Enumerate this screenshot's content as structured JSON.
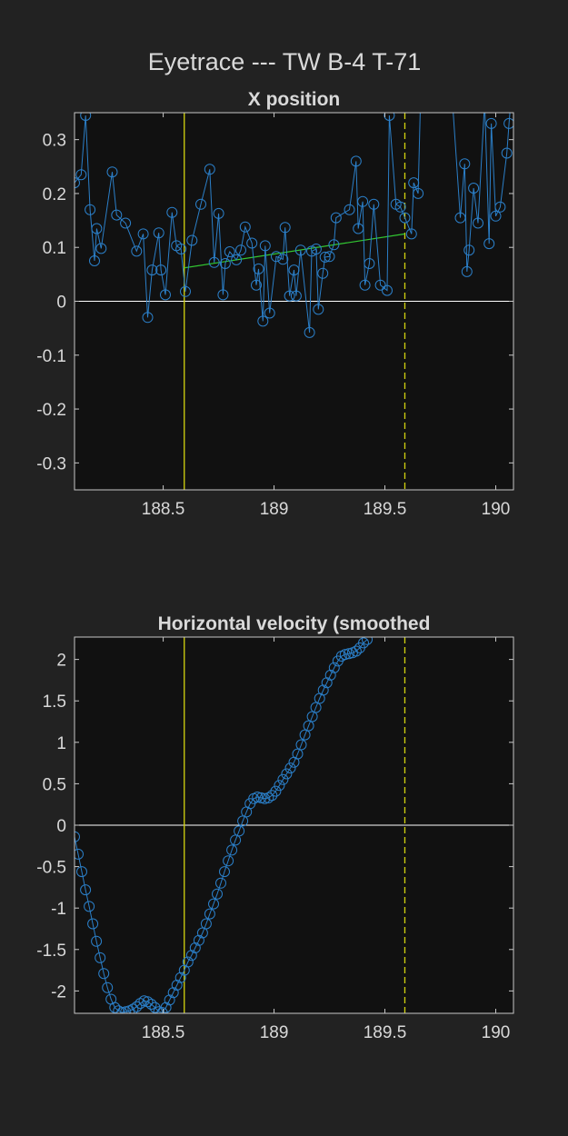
{
  "figure_title": "Eyetrace --- TW B-4 T-71",
  "colors": {
    "background": "#222222",
    "axes_bg": "#111111",
    "axis": "#c8c8c8",
    "text": "#d9d9d9",
    "trace": "#2b7fc8",
    "event": "#d4d40f",
    "fit": "#32c832",
    "zero": "#ffffff"
  },
  "chart_data": [
    {
      "type": "line",
      "title": "X position",
      "xlabel": "",
      "ylabel": "",
      "xlim": [
        188.1,
        190.08
      ],
      "ylim": [
        -0.35,
        0.35
      ],
      "xticks": [
        188.5,
        189,
        189.5,
        190
      ],
      "xtick_labels": [
        "188.5",
        "189",
        "189.5",
        "190"
      ],
      "yticks": [
        -0.3,
        -0.2,
        -0.1,
        0,
        0.1,
        0.2,
        0.3
      ],
      "ytick_labels": [
        "-0.3",
        "-0.2",
        "-0.1",
        "0",
        "0.1",
        "0.2",
        "0.3"
      ],
      "grid": false,
      "zero_line": true,
      "vlines": [
        {
          "x": 188.595,
          "style": "solid"
        },
        {
          "x": 189.59,
          "style": "dashed"
        }
      ],
      "fit_line": {
        "x": [
          188.595,
          189.59
        ],
        "y": [
          0.062,
          0.125
        ]
      },
      "series": [
        {
          "marker": "circle",
          "points": [
            [
              188.1,
              0.22
            ],
            [
              188.13,
              0.235
            ],
            [
              188.15,
              0.345
            ],
            [
              188.17,
              0.17
            ],
            [
              188.19,
              0.075
            ],
            [
              188.2,
              0.135
            ],
            [
              188.22,
              0.098
            ],
            [
              188.27,
              0.24
            ],
            [
              188.29,
              0.16
            ],
            [
              188.33,
              0.145
            ],
            [
              188.38,
              0.093
            ],
            [
              188.41,
              0.125
            ],
            [
              188.43,
              -0.03
            ],
            [
              188.45,
              0.058
            ],
            [
              188.48,
              0.127
            ],
            [
              188.49,
              0.058
            ],
            [
              188.51,
              0.012
            ],
            [
              188.54,
              0.165
            ],
            [
              188.56,
              0.103
            ],
            [
              188.58,
              0.097
            ],
            [
              188.6,
              0.018
            ],
            [
              188.63,
              0.113
            ],
            [
              188.67,
              0.18
            ],
            [
              188.71,
              0.245
            ],
            [
              188.73,
              0.072
            ],
            [
              188.75,
              0.163
            ],
            [
              188.77,
              0.012
            ],
            [
              188.78,
              0.07
            ],
            [
              188.8,
              0.092
            ],
            [
              188.83,
              0.077
            ],
            [
              188.85,
              0.095
            ],
            [
              188.87,
              0.138
            ],
            [
              188.9,
              0.108
            ],
            [
              188.92,
              0.03
            ],
            [
              188.93,
              0.06
            ],
            [
              188.95,
              -0.037
            ],
            [
              188.96,
              0.103
            ],
            [
              188.98,
              -0.022
            ],
            [
              189.01,
              0.083
            ],
            [
              189.04,
              0.078
            ],
            [
              189.05,
              0.137
            ],
            [
              189.07,
              0.01
            ],
            [
              189.09,
              0.058
            ],
            [
              189.1,
              0.01
            ],
            [
              189.12,
              0.095
            ],
            [
              189.16,
              -0.058
            ],
            [
              189.17,
              0.093
            ],
            [
              189.19,
              0.097
            ],
            [
              189.2,
              -0.015
            ],
            [
              189.22,
              0.052
            ],
            [
              189.23,
              0.082
            ],
            [
              189.25,
              0.083
            ],
            [
              189.27,
              0.105
            ],
            [
              189.28,
              0.155
            ],
            [
              189.34,
              0.17
            ],
            [
              189.37,
              0.26
            ],
            [
              189.38,
              0.135
            ],
            [
              189.4,
              0.185
            ],
            [
              189.41,
              0.03
            ],
            [
              189.43,
              0.07
            ],
            [
              189.45,
              0.18
            ],
            [
              189.48,
              0.03
            ],
            [
              189.51,
              0.02
            ],
            [
              189.52,
              0.345
            ],
            [
              189.55,
              0.18
            ],
            [
              189.57,
              0.175
            ],
            [
              189.59,
              0.155
            ],
            [
              189.62,
              0.125
            ],
            [
              189.63,
              0.22
            ],
            [
              189.65,
              0.2
            ],
            [
              189.66,
              0.36
            ]
          ]
        },
        {
          "marker": "circle",
          "points": [
            [
              189.8,
              0.4
            ],
            [
              189.84,
              0.155
            ],
            [
              189.86,
              0.255
            ],
            [
              189.87,
              0.055
            ],
            [
              189.88,
              0.095
            ],
            [
              189.9,
              0.21
            ],
            [
              189.92,
              0.145
            ],
            [
              189.95,
              0.37
            ],
            [
              189.97,
              0.107
            ],
            [
              189.98,
              0.33
            ],
            [
              190.0,
              0.158
            ],
            [
              190.02,
              0.175
            ],
            [
              190.05,
              0.275
            ],
            [
              190.06,
              0.33
            ],
            [
              190.08,
              0.43
            ]
          ]
        }
      ]
    },
    {
      "type": "line",
      "title": "Horizontal velocity (smoothed",
      "xlabel": "",
      "ylabel": "",
      "xlim": [
        188.1,
        190.08
      ],
      "ylim": [
        -2.27,
        2.27
      ],
      "xticks": [
        188.5,
        189,
        189.5,
        190
      ],
      "xtick_labels": [
        "188.5",
        "189",
        "189.5",
        "190"
      ],
      "yticks": [
        -2,
        -1.5,
        -1,
        -0.5,
        0,
        0.5,
        1,
        1.5,
        2
      ],
      "ytick_labels": [
        "-2",
        "-1.5",
        "-1",
        "-0.5",
        "0",
        "0.5",
        "1",
        "1.5",
        "2"
      ],
      "grid": false,
      "zero_line": true,
      "vlines": [
        {
          "x": 188.595,
          "style": "solid"
        },
        {
          "x": 189.59,
          "style": "dashed"
        }
      ],
      "series": [
        {
          "marker": "circle",
          "x_start": 188.1,
          "x_step": 0.0165,
          "values": [
            -0.14,
            -0.35,
            -0.56,
            -0.78,
            -0.98,
            -1.19,
            -1.4,
            -1.6,
            -1.79,
            -1.96,
            -2.1,
            -2.2,
            -2.24,
            -2.26,
            -2.25,
            -2.24,
            -2.22,
            -2.19,
            -2.15,
            -2.12,
            -2.13,
            -2.16,
            -2.2,
            -2.25,
            -2.26,
            -2.2,
            -2.11,
            -2.02,
            -1.93,
            -1.84,
            -1.75,
            -1.65,
            -1.57,
            -1.48,
            -1.39,
            -1.3,
            -1.19,
            -1.07,
            -0.95,
            -0.83,
            -0.7,
            -0.56,
            -0.43,
            -0.3,
            -0.18,
            -0.07,
            0.05,
            0.16,
            0.26,
            0.32,
            0.34,
            0.33,
            0.32,
            0.33,
            0.36,
            0.41,
            0.48,
            0.55,
            0.62,
            0.69,
            0.76,
            0.86,
            0.97,
            1.09,
            1.2,
            1.31,
            1.42,
            1.53,
            1.63,
            1.72,
            1.81,
            1.9,
            1.98,
            2.04,
            2.06,
            2.07,
            2.08,
            2.1,
            2.14,
            2.2,
            2.24
          ]
        }
      ]
    }
  ]
}
